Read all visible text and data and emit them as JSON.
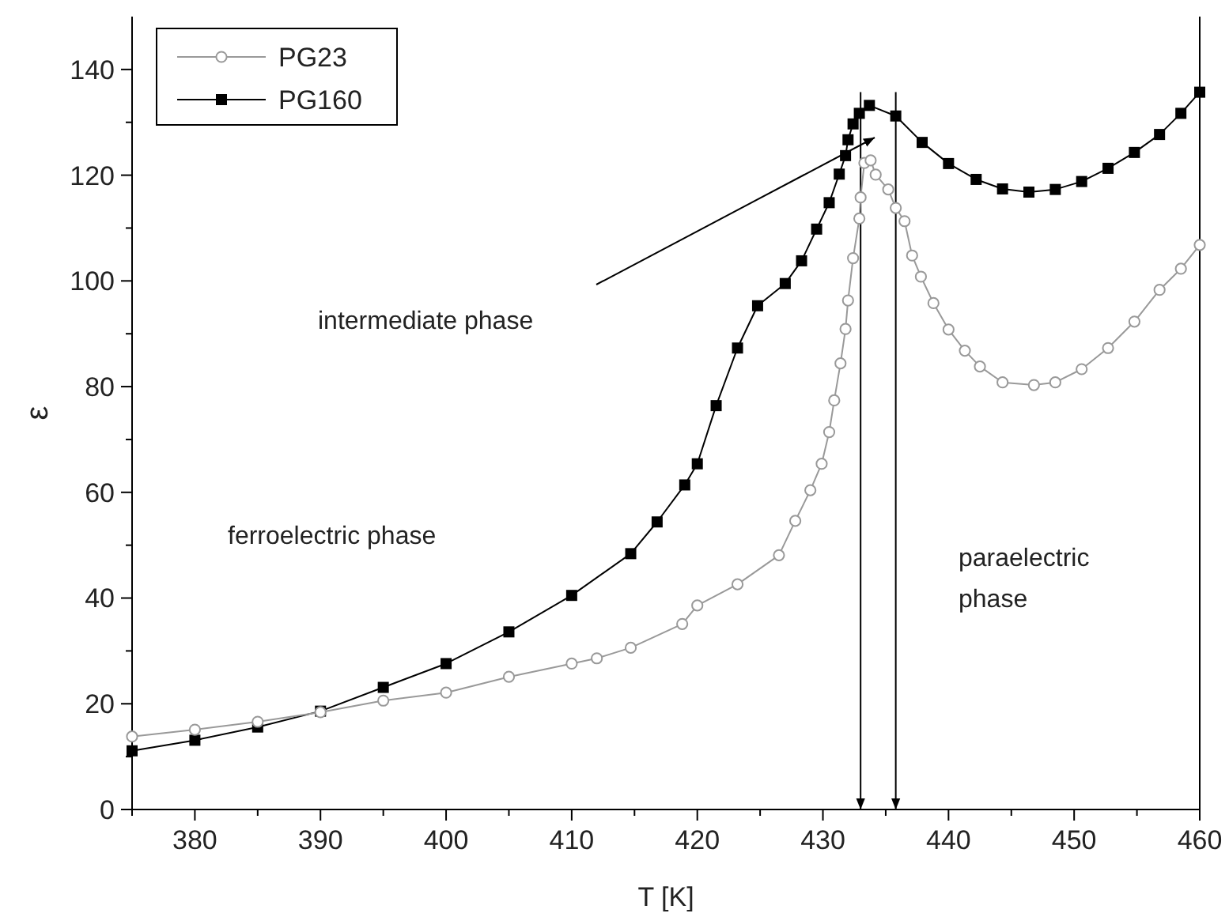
{
  "chart_data": {
    "type": "line",
    "xlabel": "T [K]",
    "ylabel": "ε",
    "xlim": [
      375,
      460
    ],
    "ylim": [
      0,
      150
    ],
    "xticks": [
      {
        "value": 375,
        "label": null
      },
      380,
      {
        "value": 385,
        "label": null
      },
      390,
      {
        "value": 395,
        "label": null
      },
      400,
      {
        "value": 405,
        "label": null
      },
      410,
      {
        "value": 415,
        "label": null
      },
      420,
      {
        "value": 425,
        "label": null
      },
      430,
      {
        "value": 435,
        "label": null
      },
      440,
      {
        "value": 445,
        "label": null
      },
      450,
      {
        "value": 455,
        "label": null
      },
      460
    ],
    "yticks": [
      0,
      {
        "value": 10,
        "label": null
      },
      20,
      {
        "value": 30,
        "label": null
      },
      40,
      {
        "value": 50,
        "label": null
      },
      60,
      {
        "value": 70,
        "label": null
      },
      80,
      {
        "value": 90,
        "label": null
      },
      100,
      {
        "value": 110,
        "label": null
      },
      120,
      {
        "value": 130,
        "label": null
      },
      140
    ],
    "grid": false,
    "legend": "top left",
    "line_style": "solid",
    "series": [
      {
        "name": "PG23",
        "color": "#999999",
        "marker": "circle",
        "x": [
          375,
          380,
          385,
          390,
          395,
          400,
          405,
          410,
          412,
          414.7,
          418.8,
          420,
          423.2,
          426.5,
          427.8,
          429,
          429.9,
          430.5,
          430.9,
          431.4,
          431.8,
          432,
          432.4,
          432.9,
          433,
          433.3,
          433.8,
          434.2,
          435.2,
          435.8,
          436.5,
          437.1,
          437.8,
          438.8,
          440,
          441.3,
          442.5,
          444.3,
          446.8,
          448.5,
          450.6,
          452.7,
          454.8,
          456.8,
          458.5,
          460
        ],
        "values": [
          13.8,
          15.1,
          16.6,
          18.4,
          20.6,
          22.1,
          25.1,
          27.6,
          28.6,
          30.6,
          35.1,
          38.6,
          42.6,
          48.1,
          54.6,
          60.4,
          65.4,
          71.4,
          77.4,
          84.4,
          90.9,
          96.3,
          104.3,
          111.8,
          115.8,
          122.3,
          122.8,
          120.1,
          117.3,
          113.8,
          111.3,
          104.8,
          100.8,
          95.8,
          90.8,
          86.8,
          83.8,
          80.8,
          80.3,
          80.8,
          83.3,
          87.3,
          92.3,
          98.3,
          102.3,
          106.8
        ]
      },
      {
        "name": "PG160",
        "color": "#000000",
        "marker": "square",
        "x": [
          375,
          380,
          385,
          390,
          395,
          400,
          405,
          410,
          414.7,
          416.8,
          419,
          420,
          421.5,
          423.2,
          424.8,
          427,
          428.3,
          429.5,
          430.5,
          431.3,
          431.8,
          432,
          432.4,
          432.9,
          433.7,
          435.8,
          437.9,
          440,
          442.2,
          444.3,
          446.4,
          448.5,
          450.6,
          452.7,
          454.8,
          456.8,
          458.5,
          460
        ],
        "values": [
          11.1,
          13.1,
          15.6,
          18.6,
          23.1,
          27.6,
          33.6,
          40.5,
          48.4,
          54.4,
          61.4,
          65.4,
          76.4,
          87.3,
          95.3,
          99.5,
          103.8,
          109.8,
          114.8,
          120.2,
          123.7,
          126.7,
          129.7,
          131.7,
          133.2,
          131.2,
          126.2,
          122.2,
          119.2,
          117.4,
          116.8,
          117.3,
          118.8,
          121.3,
          124.3,
          127.7,
          131.7,
          135.7
        ]
      }
    ],
    "ref_lines": [
      {
        "axis": "x",
        "value": 433,
        "color": "#000000"
      },
      {
        "axis": "x",
        "value": 435.8,
        "color": "#000000"
      }
    ],
    "annotations": [
      "intermediate phase",
      "ferroelectric phase",
      "paraelectric phase"
    ]
  }
}
